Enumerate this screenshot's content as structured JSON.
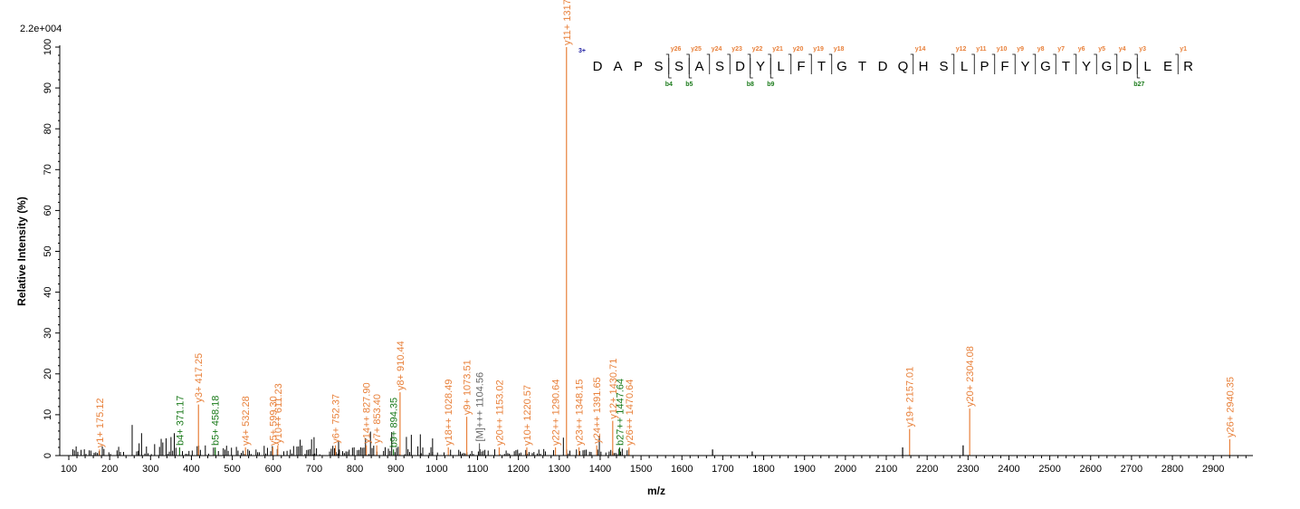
{
  "chart_data": {
    "type": "bar",
    "xlabel": "m/z",
    "ylabel": "Relative   Intensity (%)",
    "scale_label": "2.2e+004",
    "xlim": [
      100,
      2990
    ],
    "ylim": [
      0,
      100
    ],
    "x_ticks": [
      100,
      200,
      300,
      400,
      500,
      600,
      700,
      800,
      900,
      1000,
      1100,
      1200,
      1300,
      1400,
      1500,
      1600,
      1700,
      1800,
      1900,
      2000,
      2100,
      2200,
      2300,
      2400,
      2500,
      2600,
      2700,
      2800,
      2900
    ],
    "y_ticks": [
      0,
      10,
      20,
      30,
      40,
      50,
      60,
      70,
      80,
      90,
      100
    ],
    "colors": {
      "y_ion": "#e8803a",
      "b_ion": "#1a7a1a",
      "precursor": "#666666",
      "noise": "#000000",
      "charge": "#1a1aa0"
    },
    "annotated_peaks": [
      {
        "mz": 175.12,
        "intensity": 1.5,
        "label": "y1+ 175.12",
        "type": "y"
      },
      {
        "mz": 371.17,
        "intensity": 2.0,
        "label": "b4+ 371.17",
        "type": "b"
      },
      {
        "mz": 417.25,
        "intensity": 12.5,
        "label": "y3+ 417.25",
        "type": "y"
      },
      {
        "mz": 458.18,
        "intensity": 2.0,
        "label": "b5+ 458.18",
        "type": "b"
      },
      {
        "mz": 532.28,
        "intensity": 2.0,
        "label": "y4+ 532.28",
        "type": "y"
      },
      {
        "mz": 599.3,
        "intensity": 2.0,
        "label": "y5+ 599.30",
        "type": "y"
      },
      {
        "mz": 611.23,
        "intensity": 2.5,
        "label": "y10++ 611.23",
        "type": "y"
      },
      {
        "mz": 752.37,
        "intensity": 2.5,
        "label": "y6+ 752.37",
        "type": "y"
      },
      {
        "mz": 827.9,
        "intensity": 2.5,
        "label": "y14++ 827.90",
        "type": "y"
      },
      {
        "mz": 853.4,
        "intensity": 2.5,
        "label": "y7+ 853.40",
        "type": "y"
      },
      {
        "mz": 894.35,
        "intensity": 1.5,
        "label": "b9+ 894.35",
        "type": "b"
      },
      {
        "mz": 910.44,
        "intensity": 15.5,
        "label": "y8+ 910.44",
        "type": "y"
      },
      {
        "mz": 1028.49,
        "intensity": 2.0,
        "label": "y18++ 1028.49",
        "type": "y"
      },
      {
        "mz": 1073.51,
        "intensity": 9.5,
        "label": "y9+ 1073.51",
        "type": "y"
      },
      {
        "mz": 1104.56,
        "intensity": 3.0,
        "label": "[M]+++ 1104.56",
        "type": "precursor"
      },
      {
        "mz": 1153.02,
        "intensity": 2.0,
        "label": "y20++ 1153.02",
        "type": "y"
      },
      {
        "mz": 1220.57,
        "intensity": 2.0,
        "label": "y10+ 1220.57",
        "type": "y"
      },
      {
        "mz": 1290.64,
        "intensity": 2.0,
        "label": "y22++ 1290.64",
        "type": "y"
      },
      {
        "mz": 1317.63,
        "intensity": 100,
        "label": "y11+ 1317.63",
        "type": "y"
      },
      {
        "mz": 1348.15,
        "intensity": 2.0,
        "label": "y23++ 1348.15",
        "type": "y"
      },
      {
        "mz": 1391.65,
        "intensity": 2.5,
        "label": "y24++ 1391.65",
        "type": "y"
      },
      {
        "mz": 1430.71,
        "intensity": 8.5,
        "label": "y12+ 1430.71",
        "type": "y"
      },
      {
        "mz": 1447.64,
        "intensity": 2.0,
        "label": "b27++ 1447.64",
        "type": "b"
      },
      {
        "mz": 1470.64,
        "intensity": 2.0,
        "label": "y26++ 1470.64",
        "type": "y"
      },
      {
        "mz": 2157.01,
        "intensity": 6.5,
        "label": "y19+ 2157.01",
        "type": "y"
      },
      {
        "mz": 2304.08,
        "intensity": 11.5,
        "label": "y20+ 2304.08",
        "type": "y"
      },
      {
        "mz": 2940.35,
        "intensity": 4.0,
        "label": "y26+ 2940.35",
        "type": "y"
      }
    ],
    "unlabeled_peaks": [
      {
        "mz": 1675,
        "intensity": 1.5
      },
      {
        "mz": 1772,
        "intensity": 1.0
      },
      {
        "mz": 2140,
        "intensity": 2.0
      },
      {
        "mz": 2288,
        "intensity": 2.5
      }
    ],
    "sequence": {
      "charge": "3+",
      "residues": [
        "D",
        "A",
        "P",
        "S",
        "S",
        "A",
        "S",
        "D",
        "Y",
        "L",
        "F",
        "T",
        "G",
        "T",
        "D",
        "Q",
        "H",
        "S",
        "L",
        "P",
        "F",
        "Y",
        "G",
        "T",
        "Y",
        "G",
        "D",
        "L",
        "E",
        "R"
      ],
      "y_ions": [
        {
          "after": 4,
          "label": "y26"
        },
        {
          "after": 5,
          "label": "y25"
        },
        {
          "after": 6,
          "label": "y24"
        },
        {
          "after": 7,
          "label": "y23"
        },
        {
          "after": 8,
          "label": "y22"
        },
        {
          "after": 9,
          "label": "y21"
        },
        {
          "after": 10,
          "label": "y20"
        },
        {
          "after": 11,
          "label": "y19"
        },
        {
          "after": 12,
          "label": "y18"
        },
        {
          "after": 16,
          "label": "y14"
        },
        {
          "after": 18,
          "label": "y12"
        },
        {
          "after": 19,
          "label": "y11"
        },
        {
          "after": 20,
          "label": "y10"
        },
        {
          "after": 21,
          "label": "y9"
        },
        {
          "after": 22,
          "label": "y8"
        },
        {
          "after": 23,
          "label": "y7"
        },
        {
          "after": 24,
          "label": "y6"
        },
        {
          "after": 25,
          "label": "y5"
        },
        {
          "after": 26,
          "label": "y4"
        },
        {
          "after": 27,
          "label": "y3"
        },
        {
          "after": 29,
          "label": "y1"
        }
      ],
      "b_ions": [
        {
          "after": 4,
          "label": "b4"
        },
        {
          "after": 5,
          "label": "b5"
        },
        {
          "after": 8,
          "label": "b8"
        },
        {
          "after": 9,
          "label": "b9"
        },
        {
          "after": 27,
          "label": "b27"
        }
      ]
    }
  }
}
